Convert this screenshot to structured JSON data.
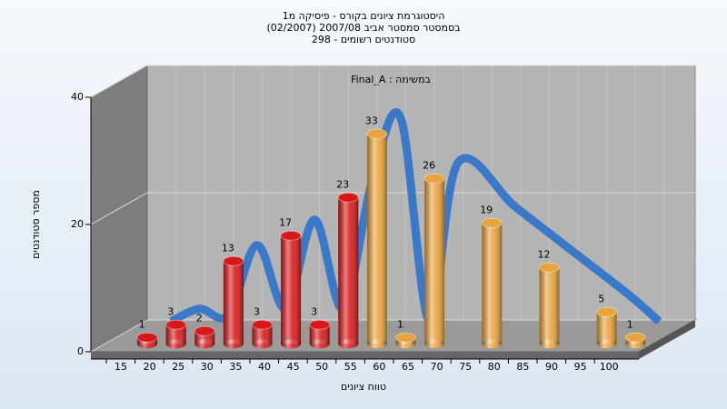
{
  "chart_data": {
    "type": "bar3d",
    "title": [
      "היסטוגרמת ציונים בקורס - פיסיקה מ1",
      "בסמסטר סמסטר אביב 2007/08 (02/2007)",
      "סטודנטים רשומים - 298"
    ],
    "subtitle": "במשימה : Final_A",
    "x_label": "טווח ציונים",
    "y_label": "מספר סטודנטים",
    "categories": [
      15,
      20,
      25,
      30,
      35,
      40,
      45,
      50,
      55,
      60,
      65,
      70,
      75,
      80,
      85,
      90,
      95,
      100
    ],
    "values": [
      1,
      3,
      2,
      13,
      3,
      17,
      3,
      23,
      33,
      1,
      26,
      null,
      19,
      null,
      12,
      null,
      5,
      1
    ],
    "colors": [
      "#d81818",
      "#d81818",
      "#d81818",
      "#d81818",
      "#d81818",
      "#d81818",
      "#d81818",
      "#d81818",
      "#e9a33c",
      "#e9a33c",
      "#e9a33c",
      "#e9a33c",
      "#e9a33c",
      "#e9a33c",
      "#e9a33c",
      "#e9a33c",
      "#e9a33c",
      "#e9a33c"
    ],
    "line_color": "#3a78c8",
    "ylim": [
      0,
      40
    ],
    "yticks": [
      0,
      20,
      40
    ],
    "grid": true
  }
}
